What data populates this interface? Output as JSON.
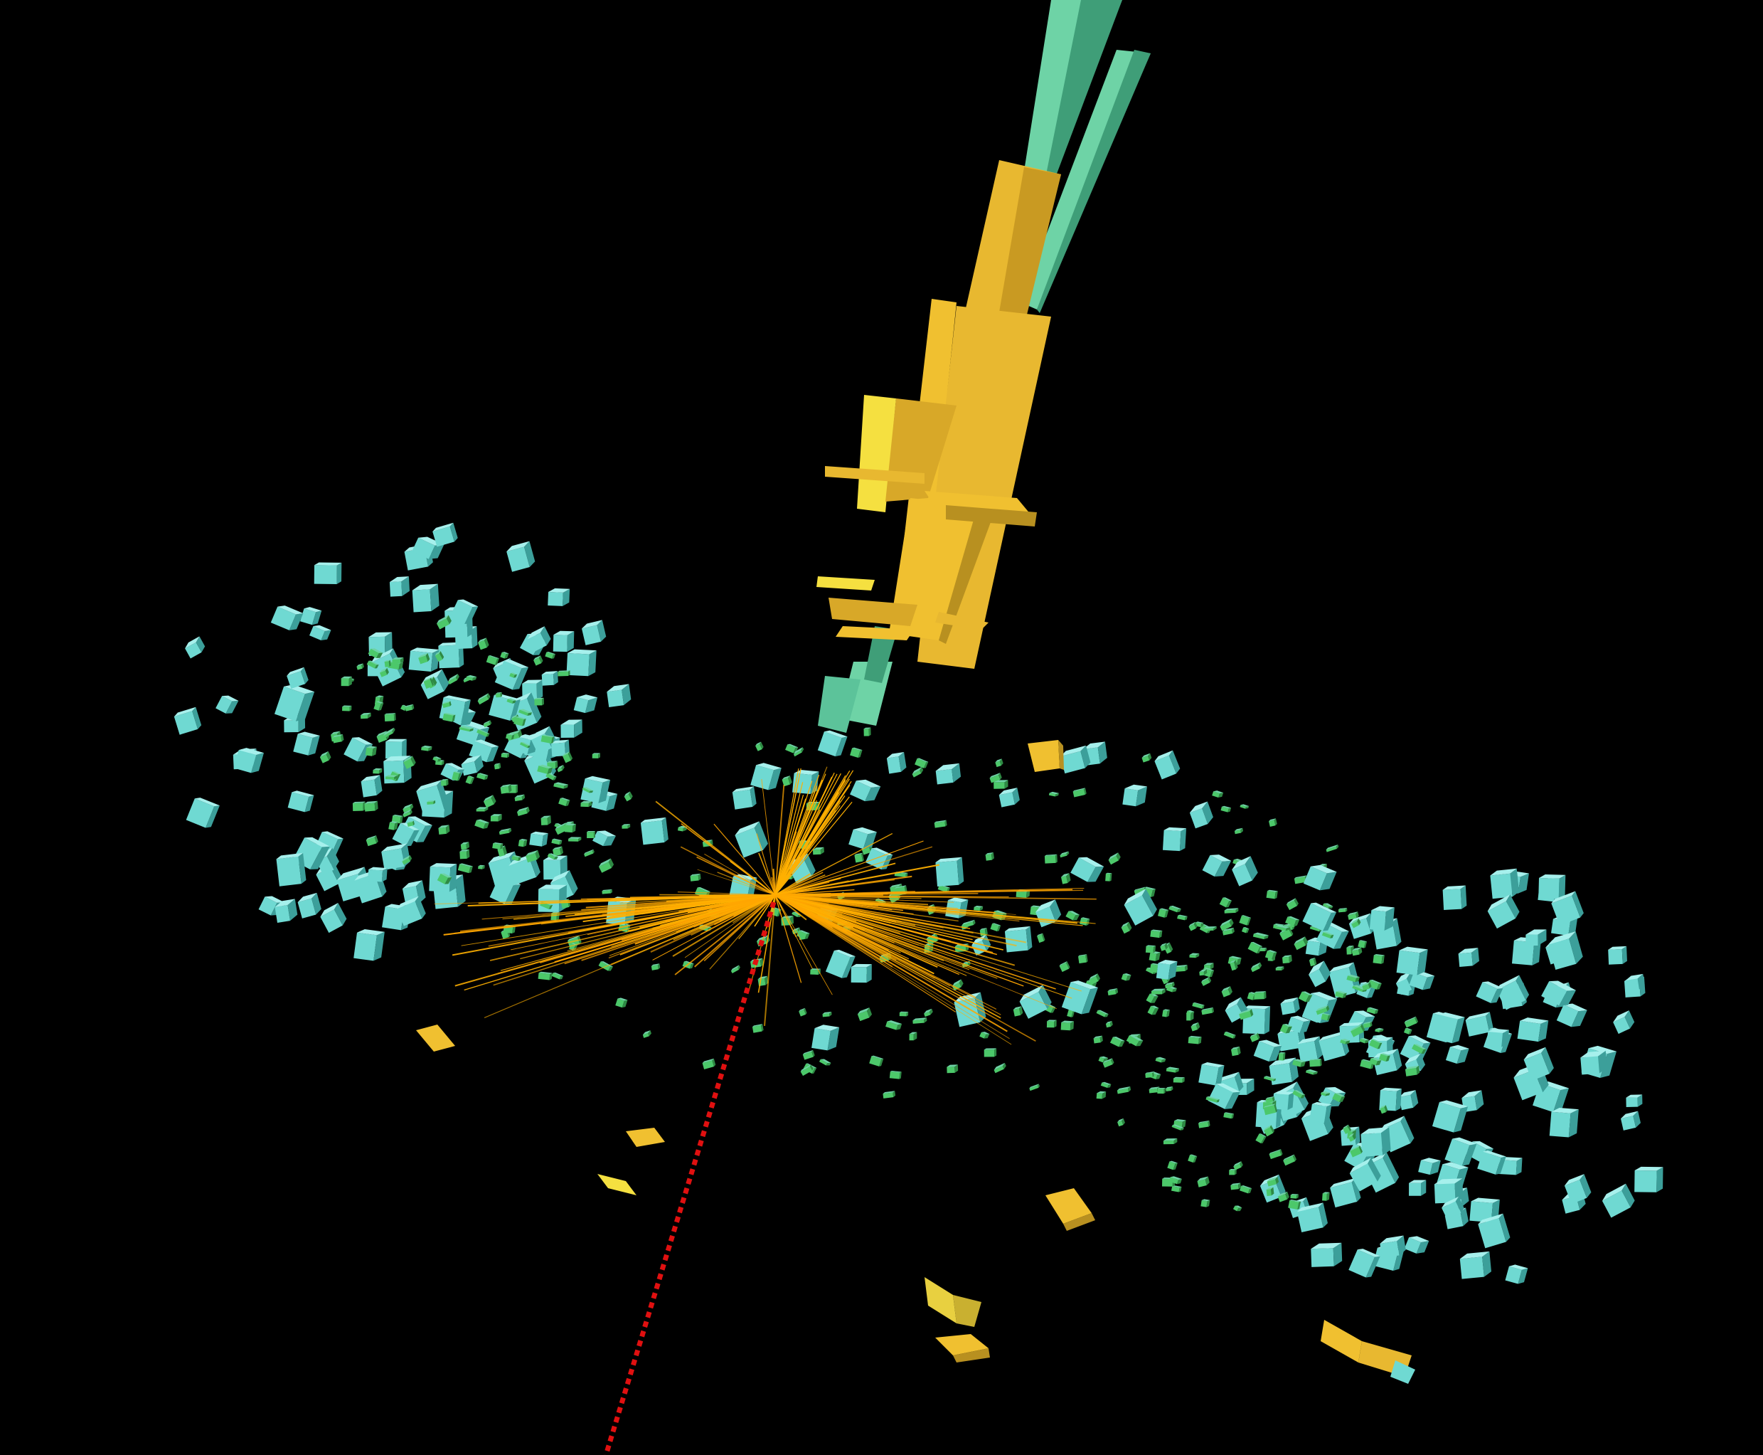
{
  "scene": {
    "background_color": "#000000",
    "colors": {
      "track_orange": "#FFA500",
      "track_core": "#FFB000",
      "jet_yellow": "#F0C030",
      "jet_yellow_light": "#F5E040",
      "jet_yellow_dark": "#B89020",
      "hadronic_teal": "#6ED3A6",
      "hadronic_teal_dark": "#3F9E78",
      "cell_cyan": "#6FD9D2",
      "cell_cyan_light": "#A6F0EC",
      "cell_cyan_dark": "#3C9F9A",
      "cell_green": "#4CC86A",
      "cell_green_dark": "#2E8A44",
      "missing_energy_red": "#E01010"
    },
    "elements": {
      "tracks": "charged-particle-tracks",
      "jet": "calorimeter-jet",
      "missing_energy": "missing-energy-line",
      "deposits": "calorimeter-cells"
    }
  }
}
